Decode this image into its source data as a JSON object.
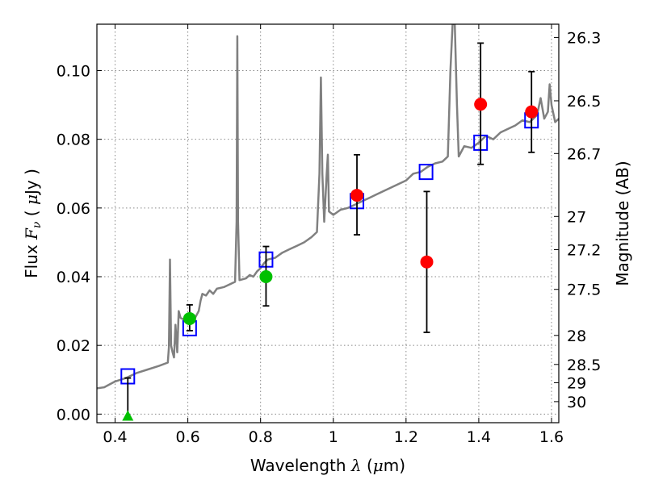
{
  "chart_data": {
    "type": "scatter",
    "title": "",
    "xlabel": {
      "prefix": "Wavelength  ",
      "sym": "λ",
      "unit": " (",
      "unit_sym": "μ",
      "unit_end": "m)"
    },
    "ylabel": {
      "prefix": "Flux  ",
      "sym": "F",
      "sub": "ν",
      "unit": "  ( ",
      "unit_sym": "μ",
      "unit_end": "Jy )"
    },
    "y2label": "Magnitude (AB)",
    "xlim": [
      0.35,
      1.62
    ],
    "ylim": [
      -0.0025,
      0.1135
    ],
    "grid": true,
    "x_ticks": [
      {
        "value": 0.4,
        "label": "0.4"
      },
      {
        "value": 0.6,
        "label": "0.6"
      },
      {
        "value": 0.8,
        "label": "0.8"
      },
      {
        "value": 1.0,
        "label": "1"
      },
      {
        "value": 1.2,
        "label": "1.2"
      },
      {
        "value": 1.4,
        "label": "1.4"
      },
      {
        "value": 1.6,
        "label": "1.6"
      }
    ],
    "y_ticks": [
      {
        "value": 0.0,
        "label": "0.00"
      },
      {
        "value": 0.02,
        "label": "0.02"
      },
      {
        "value": 0.04,
        "label": "0.04"
      },
      {
        "value": 0.06,
        "label": "0.06"
      },
      {
        "value": 0.08,
        "label": "0.08"
      },
      {
        "value": 0.1,
        "label": "0.10"
      }
    ],
    "y2_ticks": [
      {
        "value": 26.3,
        "label": "26.3"
      },
      {
        "value": 26.5,
        "label": "26.5"
      },
      {
        "value": 26.7,
        "label": "26.7"
      },
      {
        "value": 27.0,
        "label": "27"
      },
      {
        "value": 27.2,
        "label": "27.2"
      },
      {
        "value": 27.5,
        "label": "27.5"
      },
      {
        "value": 28.0,
        "label": "28"
      },
      {
        "value": 28.5,
        "label": "28.5"
      },
      {
        "value": 29.0,
        "label": "29"
      },
      {
        "value": 30.0,
        "label": "30"
      }
    ],
    "colors": {
      "model": "#808080",
      "model_photometry": "#0000ff",
      "observed_red": "#ff0000",
      "observed_green": "#00c000",
      "errorbar": "#000000",
      "grid": "#888888"
    },
    "series": [
      {
        "style": "line",
        "color": "#808080",
        "points": [
          [
            0.35,
            0.0075
          ],
          [
            0.37,
            0.0078
          ],
          [
            0.4,
            0.0095
          ],
          [
            0.43,
            0.0105
          ],
          [
            0.46,
            0.012
          ],
          [
            0.49,
            0.013
          ],
          [
            0.52,
            0.014
          ],
          [
            0.545,
            0.015
          ],
          [
            0.548,
            0.0195
          ],
          [
            0.551,
            0.045
          ],
          [
            0.554,
            0.02
          ],
          [
            0.558,
            0.018
          ],
          [
            0.562,
            0.0165
          ],
          [
            0.566,
            0.026
          ],
          [
            0.571,
            0.018
          ],
          [
            0.575,
            0.03
          ],
          [
            0.58,
            0.028
          ],
          [
            0.59,
            0.0275
          ],
          [
            0.6,
            0.028
          ],
          [
            0.61,
            0.0285
          ],
          [
            0.62,
            0.028
          ],
          [
            0.63,
            0.03
          ],
          [
            0.635,
            0.033
          ],
          [
            0.64,
            0.035
          ],
          [
            0.65,
            0.0345
          ],
          [
            0.66,
            0.036
          ],
          [
            0.67,
            0.035
          ],
          [
            0.68,
            0.0365
          ],
          [
            0.7,
            0.037
          ],
          [
            0.72,
            0.038
          ],
          [
            0.73,
            0.0385
          ],
          [
            0.734,
            0.056
          ],
          [
            0.736,
            0.11
          ],
          [
            0.738,
            0.056
          ],
          [
            0.742,
            0.039
          ],
          [
            0.76,
            0.0395
          ],
          [
            0.77,
            0.0405
          ],
          [
            0.78,
            0.04
          ],
          [
            0.79,
            0.0415
          ],
          [
            0.8,
            0.0425
          ],
          [
            0.81,
            0.044
          ],
          [
            0.82,
            0.045
          ],
          [
            0.84,
            0.0455
          ],
          [
            0.86,
            0.047
          ],
          [
            0.88,
            0.048
          ],
          [
            0.9,
            0.049
          ],
          [
            0.92,
            0.05
          ],
          [
            0.94,
            0.0515
          ],
          [
            0.955,
            0.053
          ],
          [
            0.962,
            0.07
          ],
          [
            0.966,
            0.098
          ],
          [
            0.97,
            0.07
          ],
          [
            0.975,
            0.056
          ],
          [
            0.982,
            0.07
          ],
          [
            0.985,
            0.0755
          ],
          [
            0.988,
            0.059
          ],
          [
            1.0,
            0.058
          ],
          [
            1.02,
            0.0595
          ],
          [
            1.04,
            0.06
          ],
          [
            1.06,
            0.061
          ],
          [
            1.08,
            0.062
          ],
          [
            1.1,
            0.063
          ],
          [
            1.12,
            0.064
          ],
          [
            1.14,
            0.065
          ],
          [
            1.16,
            0.066
          ],
          [
            1.18,
            0.067
          ],
          [
            1.2,
            0.068
          ],
          [
            1.22,
            0.07
          ],
          [
            1.24,
            0.0705
          ],
          [
            1.26,
            0.072
          ],
          [
            1.28,
            0.073
          ],
          [
            1.3,
            0.0735
          ],
          [
            1.315,
            0.075
          ],
          [
            1.322,
            0.1
          ],
          [
            1.328,
            0.1135
          ],
          [
            1.334,
            0.1135
          ],
          [
            1.34,
            0.09
          ],
          [
            1.345,
            0.075
          ],
          [
            1.36,
            0.078
          ],
          [
            1.38,
            0.0775
          ],
          [
            1.4,
            0.079
          ],
          [
            1.42,
            0.081
          ],
          [
            1.44,
            0.08
          ],
          [
            1.46,
            0.082
          ],
          [
            1.48,
            0.083
          ],
          [
            1.5,
            0.084
          ],
          [
            1.52,
            0.0855
          ],
          [
            1.54,
            0.085
          ],
          [
            1.56,
            0.087
          ],
          [
            1.57,
            0.092
          ],
          [
            1.58,
            0.086
          ],
          [
            1.59,
            0.088
          ],
          [
            1.595,
            0.096
          ],
          [
            1.6,
            0.09
          ],
          [
            1.61,
            0.085
          ],
          [
            1.62,
            0.086
          ]
        ]
      },
      {
        "style": "open_square",
        "color": "#0000ff",
        "points": [
          [
            0.435,
            0.011
          ],
          [
            0.605,
            0.025
          ],
          [
            0.815,
            0.045
          ],
          [
            1.065,
            0.062
          ],
          [
            1.255,
            0.0705
          ],
          [
            1.405,
            0.079
          ],
          [
            1.545,
            0.0855
          ]
        ]
      },
      {
        "style": "circle",
        "color": "#ff0000",
        "points": [
          {
            "x": 1.065,
            "y": 0.0637,
            "err_lo": 0.0115,
            "err_hi": 0.0118
          },
          {
            "x": 1.257,
            "y": 0.0443,
            "err_lo": 0.0205,
            "err_hi": 0.0205
          },
          {
            "x": 1.405,
            "y": 0.0902,
            "err_lo": 0.0175,
            "err_hi": 0.0178
          },
          {
            "x": 1.545,
            "y": 0.088,
            "err_lo": 0.0118,
            "err_hi": 0.0117
          }
        ]
      },
      {
        "style": "circle",
        "color": "#00c000",
        "points": [
          {
            "x": 0.605,
            "y": 0.0278,
            "err_lo": 0.0035,
            "err_hi": 0.004
          },
          {
            "x": 0.815,
            "y": 0.04,
            "err_lo": 0.0085,
            "err_hi": 0.0088
          }
        ]
      },
      {
        "style": "triangle",
        "color": "#00c000",
        "points": [
          {
            "x": 0.435,
            "y": -0.0005,
            "err_lo": 0.0,
            "err_hi": 0.011
          }
        ]
      }
    ]
  }
}
